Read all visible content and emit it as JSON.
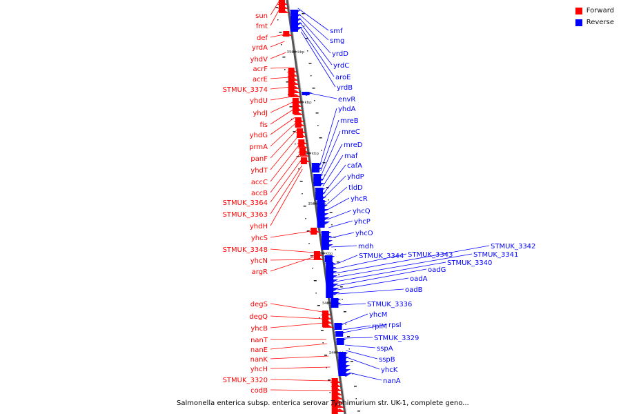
{
  "legend": [
    {
      "label": "Forward",
      "color": "#ff0000"
    },
    {
      "label": "Reverse",
      "color": "#0000ff"
    }
  ],
  "caption": "Salmonella enterica subsp. enterica serovar Typhimurium str. UK-1, complete geno...",
  "colors": {
    "forward": "#ff0000",
    "reverse": "#0000ff",
    "backbone": "#888888"
  },
  "kbp_ticks": [
    "3530 kbp",
    "3520 kbp",
    "3510 kbp",
    "3500 kbp",
    "3490 kbp",
    "3480 kbp",
    "3470 kbp"
  ],
  "forward_genes": [
    "sun",
    "fmt",
    "def",
    "yrdA",
    "yhdV",
    "acrF",
    "acrE",
    "STMUK_3374",
    "yhdU",
    "yhdJ",
    "fis",
    "yhdG",
    "prmA",
    "panF",
    "yhdT",
    "accC",
    "accB",
    "STMUK_3364",
    "STMUK_3363",
    "yhdH",
    "yhcS",
    "STMUK_3348",
    "yhcN",
    "argR",
    "degS",
    "degQ",
    "yhcB",
    "nanT",
    "nanE",
    "nanK",
    "yhcH",
    "STMUK_3320",
    "codB"
  ],
  "reverse_genes": [
    "smf",
    "smg",
    "yrdD",
    "yrdC",
    "aroE",
    "yrdB",
    "envR",
    "yhdA",
    "mreB",
    "mreC",
    "mreD",
    "maf",
    "cafA",
    "yhdP",
    "tldD",
    "yhcR",
    "yhcQ",
    "yhcP",
    "yhcO",
    "mdh",
    "STMUK_3344",
    "STMUK_3343",
    "STMUK_3342",
    "STMUK_3341",
    "STMUK_3340",
    "oadG",
    "oadA",
    "oadB",
    "STMUK_3336",
    "yhcM",
    "rplM",
    "rpsI",
    "STMUK_3329",
    "sspA",
    "sspB",
    "yhcK",
    "nanA"
  ]
}
